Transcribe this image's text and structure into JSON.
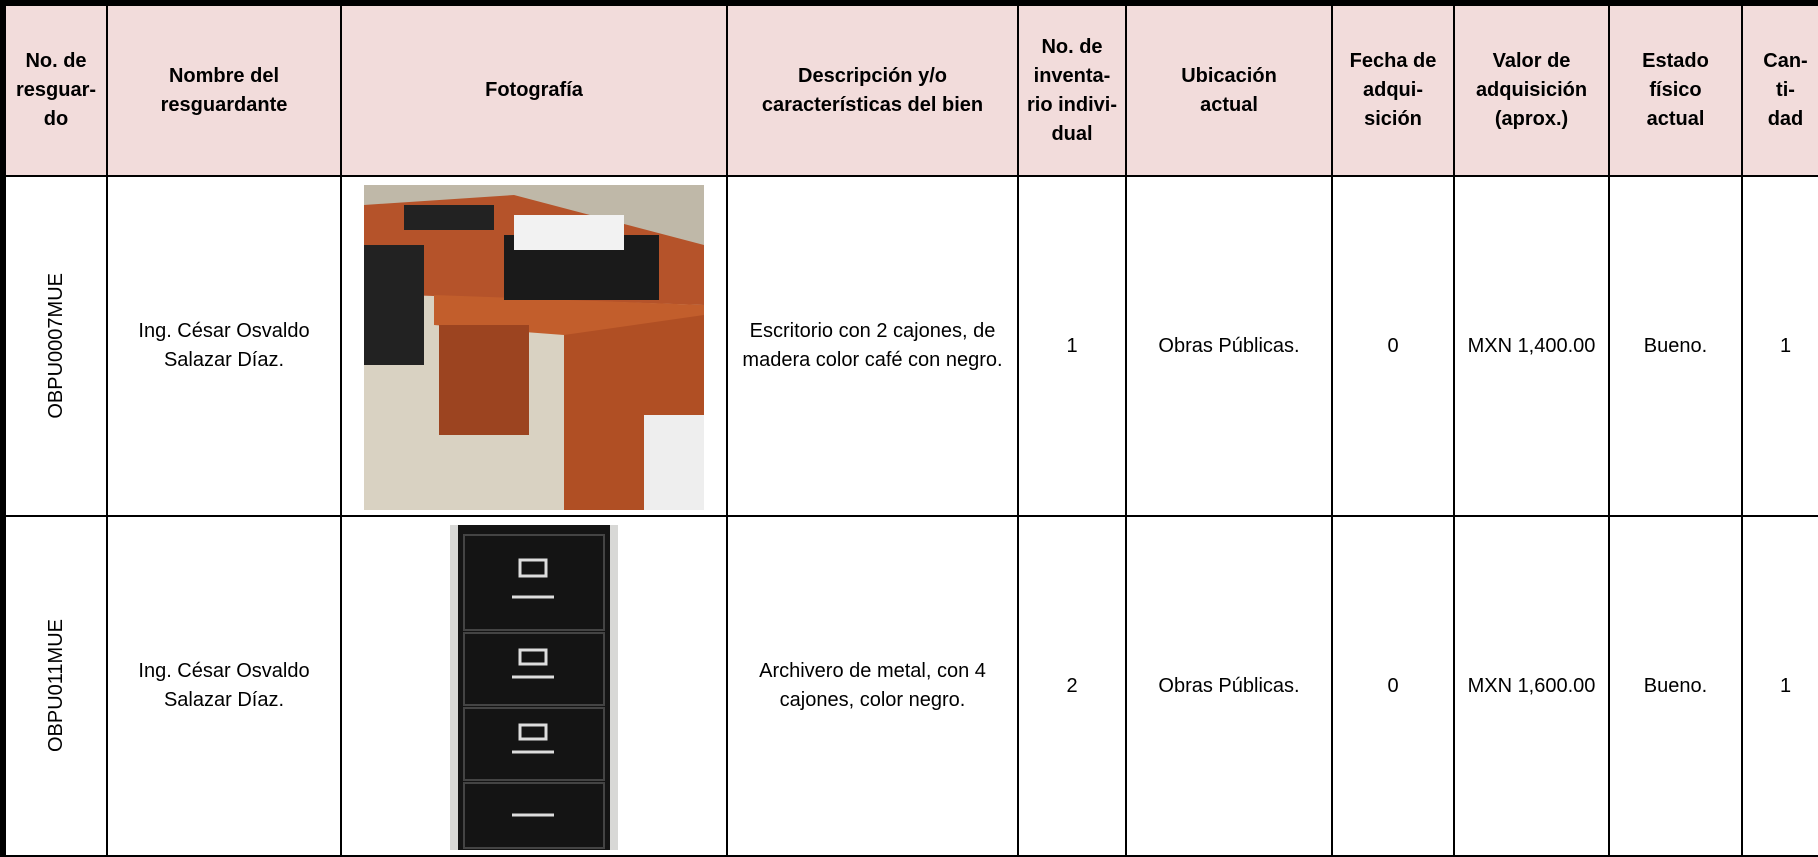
{
  "table": {
    "headers": [
      [
        "No. de",
        "resguar-",
        "do"
      ],
      [
        "Nombre del",
        "resguardante"
      ],
      [
        "Fotografía"
      ],
      [
        "Descripción y/o",
        "características del bien"
      ],
      [
        "No. de",
        "inventa-",
        "rio indivi-",
        "dual"
      ],
      [
        "Ubicación",
        "actual"
      ],
      [
        "Fecha de",
        "adqui-",
        "sición"
      ],
      [
        "Valor de",
        "adquisición",
        "(aprox.)"
      ],
      [
        "Estado",
        "físico",
        "actual"
      ],
      [
        "Can-",
        "ti-",
        "dad"
      ]
    ],
    "rows": [
      {
        "id": "OBPU0007MUE",
        "name": "Ing. César Osvaldo Salazar Díaz.",
        "description": "Escritorio con 2 cajones, de madera color café con negro.",
        "inventory": "1",
        "location": "Obras Públicas.",
        "date": "0",
        "value": "MXN 1,400.00",
        "condition": "Bueno.",
        "quantity": "1"
      },
      {
        "id": "OBPU011MUE",
        "name": "Ing. César Osvaldo Salazar Díaz.",
        "description": "Archivero de metal, con 4 cajones, color negro.",
        "inventory": "2",
        "location": "Obras Públicas.",
        "date": "0",
        "value": "MXN 1,600.00",
        "condition": "Bueno.",
        "quantity": "1"
      }
    ]
  }
}
